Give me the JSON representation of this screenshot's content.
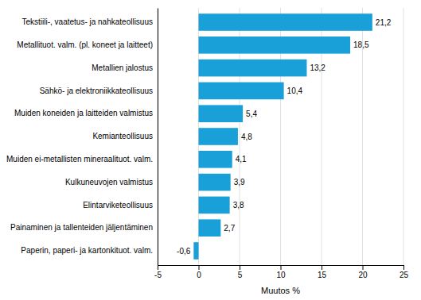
{
  "chart_data": {
    "type": "bar",
    "orientation": "horizontal",
    "categories": [
      "Paperin, paperi- ja kartonkituot. valm.",
      "Painaminen ja tallenteiden jäljentäminen",
      "Elintarviketeollisuus",
      "Kulkuneuvojen valmistus",
      "Muiden ei-metallisten mineraalituot. valm.",
      "Kemianteollisuus",
      "Muiden koneiden ja laitteiden valmistus",
      "Sähkö- ja elektroniikkateollisuus",
      "Metallien jalostus",
      "Metallituot. valm. (pl. koneet ja laitteet)",
      "Tekstiili-, vaatetus- ja nahkateollisuus"
    ],
    "values": [
      -0.6,
      2.7,
      3.8,
      3.9,
      4.1,
      4.8,
      5.4,
      10.4,
      13.2,
      18.5,
      21.2
    ],
    "value_labels": [
      "-0,6",
      "2,7",
      "3,8",
      "3,9",
      "4,1",
      "4,8",
      "5,4",
      "10,4",
      "13,2",
      "18,5",
      "21,2"
    ],
    "color": "#1aa0d8",
    "xlabel": "Muutos %",
    "xlim": [
      -5,
      25
    ],
    "xticks": [
      -5,
      0,
      5,
      10,
      15,
      20,
      25
    ],
    "grid": true,
    "data_labels": true
  }
}
